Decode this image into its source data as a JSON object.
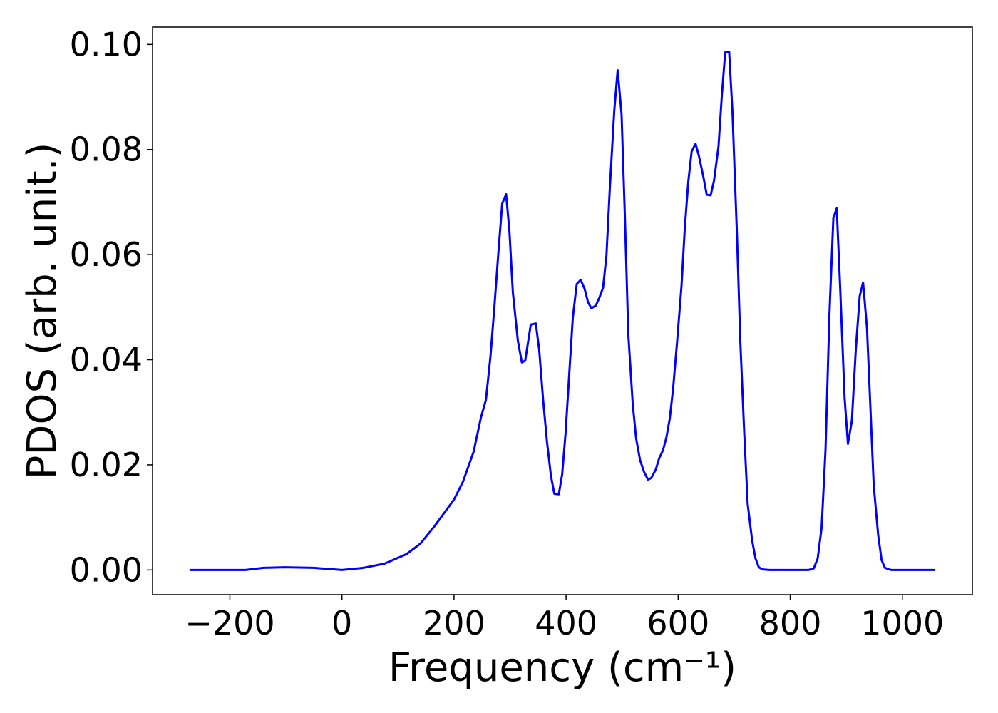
{
  "chart_data": {
    "type": "line",
    "xlabel": "Frequency (cm⁻¹)",
    "ylabel": "PDOS (arb. unit.)",
    "xlim": [
      -338,
      1125
    ],
    "ylim": [
      -0.0047,
      0.1033
    ],
    "xticks": [
      {
        "value": -200,
        "label": "−200"
      },
      0,
      200,
      400,
      600,
      800,
      1000
    ],
    "yticks": [
      {
        "value": 0,
        "label": "0.00"
      },
      {
        "value": 0.02,
        "label": "0.02"
      },
      {
        "value": 0.04,
        "label": "0.04"
      },
      {
        "value": 0.06,
        "label": "0.06"
      },
      {
        "value": 0.08,
        "label": "0.08"
      },
      {
        "value": 0.1,
        "label": "0.10"
      }
    ],
    "grid": false,
    "x": [
      -272,
      -172,
      -140,
      -102,
      -51,
      0,
      38,
      76,
      115,
      140,
      165,
      200,
      216,
      235,
      248,
      257,
      265,
      272,
      280,
      286,
      293,
      299,
      305,
      314,
      321,
      327,
      337,
      346,
      352,
      359,
      366,
      373,
      379,
      387,
      393,
      399,
      406,
      412,
      419,
      426,
      433,
      439,
      445,
      453,
      459,
      466,
      472,
      478,
      486,
      492,
      499,
      505,
      511,
      519,
      525,
      532,
      539,
      546,
      552,
      560,
      566,
      573,
      579,
      585,
      591,
      598,
      606,
      612,
      618,
      624,
      631,
      637,
      645,
      651,
      658,
      664,
      672,
      678,
      684,
      691,
      697,
      705,
      711,
      718,
      724,
      732,
      738,
      744,
      751,
      763,
      833,
      842,
      849,
      856,
      863,
      870,
      877,
      883,
      889,
      897,
      903,
      910,
      917,
      924,
      930,
      937,
      943,
      949,
      957,
      963,
      969,
      980,
      1059
    ],
    "series": [
      {
        "color": "#0000ff",
        "values": [
          0,
          0,
          0.0004,
          0.0005,
          0.0004,
          0,
          0.0004,
          0.0012,
          0.003,
          0.005,
          0.0083,
          0.0134,
          0.0168,
          0.0225,
          0.029,
          0.0324,
          0.0406,
          0.05,
          0.0616,
          0.0697,
          0.0715,
          0.0643,
          0.0528,
          0.0436,
          0.0395,
          0.0398,
          0.0467,
          0.0469,
          0.0419,
          0.0324,
          0.0243,
          0.0179,
          0.0145,
          0.0144,
          0.0182,
          0.0259,
          0.0379,
          0.048,
          0.0544,
          0.0552,
          0.0535,
          0.051,
          0.0498,
          0.0503,
          0.0517,
          0.0537,
          0.0598,
          0.0725,
          0.0874,
          0.0951,
          0.0867,
          0.067,
          0.0449,
          0.0315,
          0.025,
          0.0209,
          0.0187,
          0.0172,
          0.0175,
          0.0191,
          0.0212,
          0.0228,
          0.0252,
          0.0288,
          0.0345,
          0.0433,
          0.0541,
          0.0653,
          0.0738,
          0.0796,
          0.0811,
          0.0788,
          0.0748,
          0.0714,
          0.0713,
          0.0741,
          0.0806,
          0.0904,
          0.0985,
          0.0986,
          0.087,
          0.0636,
          0.0433,
          0.0259,
          0.0126,
          0.0056,
          0.0022,
          0.0005,
          0.0001,
          0,
          0,
          0.0003,
          0.0022,
          0.008,
          0.0229,
          0.0487,
          0.067,
          0.0688,
          0.0541,
          0.0328,
          0.024,
          0.0284,
          0.0419,
          0.0521,
          0.0547,
          0.046,
          0.0311,
          0.0161,
          0.0066,
          0.0019,
          0.0004,
          0,
          0
        ]
      }
    ]
  }
}
